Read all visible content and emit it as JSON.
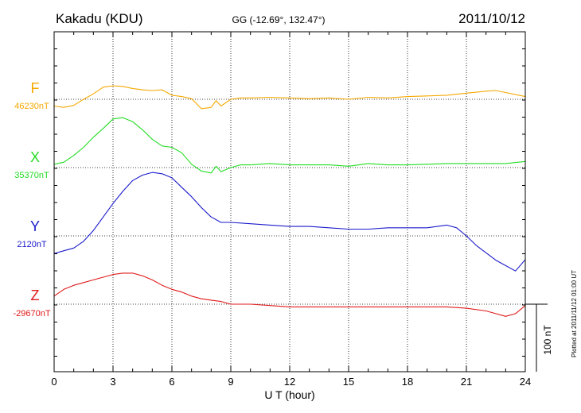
{
  "header": {
    "station": "Kakadu (KDU)",
    "coords": "GG (-12.69°, 132.47°)",
    "date": "2011/10/12"
  },
  "footer": {
    "plotted": "Plotted at 2011/11/12 01:00 UT"
  },
  "chart_data": {
    "type": "line",
    "xlabel": "U T (hour)",
    "xlim": [
      0,
      24
    ],
    "xticks": [
      0,
      3,
      6,
      9,
      12,
      15,
      18,
      21,
      24
    ],
    "scale_bar": {
      "label": "100 nT",
      "value": 100
    },
    "colors": {
      "F": "#f5a800",
      "X": "#22dd22",
      "Y": "#1a1acc",
      "Z": "#e01a1a"
    },
    "series": [
      {
        "name": "F",
        "baseline_label": "46230nT",
        "baseline": 46230,
        "x": [
          0,
          0.5,
          1,
          1.5,
          2,
          2.5,
          3,
          3.5,
          4,
          4.5,
          5,
          5.5,
          6,
          6.5,
          7,
          7.5,
          8,
          8.25,
          8.5,
          9,
          9.5,
          10,
          11,
          12,
          13,
          14,
          15,
          16,
          17,
          18,
          19,
          20,
          21,
          22,
          22.5,
          23,
          24
        ],
        "values": [
          -10,
          -12,
          -9,
          0,
          8,
          18,
          20,
          19,
          16,
          14,
          13,
          14,
          6,
          4,
          1,
          -14,
          -12,
          -2,
          -10,
          0,
          2,
          2,
          3,
          2,
          1,
          2,
          0,
          3,
          2,
          4,
          5,
          6,
          9,
          12,
          13,
          10,
          4
        ]
      },
      {
        "name": "X",
        "baseline_label": "35370nT",
        "baseline": 35370,
        "x": [
          0,
          0.5,
          1,
          1.5,
          2,
          2.5,
          3,
          3.5,
          4,
          4.5,
          5,
          5.5,
          6,
          6.5,
          7,
          7.5,
          8,
          8.25,
          8.5,
          9,
          9.5,
          10,
          11,
          12,
          13,
          14,
          15,
          16,
          17,
          18,
          19,
          20,
          21,
          22,
          23,
          24
        ],
        "values": [
          5,
          8,
          18,
          30,
          45,
          58,
          72,
          74,
          68,
          56,
          42,
          32,
          30,
          22,
          5,
          -5,
          -8,
          2,
          -6,
          0,
          4,
          4,
          6,
          4,
          4,
          4,
          2,
          6,
          4,
          4,
          5,
          6,
          6,
          6,
          6,
          9
        ]
      },
      {
        "name": "Y",
        "baseline_label": "2120nT",
        "baseline": 2120,
        "x": [
          0,
          0.5,
          1,
          1.5,
          2,
          2.5,
          3,
          3.5,
          4,
          4.5,
          5,
          5.5,
          6,
          6.5,
          7,
          7.5,
          8,
          8.5,
          9,
          10,
          11,
          12,
          13,
          14,
          15,
          16,
          17,
          18,
          19,
          20,
          20.5,
          21,
          21.5,
          22,
          22.5,
          23,
          23.5,
          24
        ],
        "values": [
          -26,
          -22,
          -18,
          -8,
          8,
          28,
          48,
          66,
          82,
          90,
          94,
          92,
          86,
          72,
          58,
          42,
          28,
          20,
          20,
          18,
          16,
          14,
          14,
          12,
          10,
          10,
          12,
          12,
          12,
          16,
          12,
          0,
          -14,
          -25,
          -36,
          -44,
          -52,
          -35
        ]
      },
      {
        "name": "Z",
        "baseline_label": "-29670nT",
        "baseline": -29670,
        "x": [
          0,
          0.5,
          1,
          1.5,
          2,
          2.5,
          3,
          3.5,
          4,
          4.5,
          5,
          5.5,
          6,
          6.5,
          7,
          7.5,
          8,
          8.5,
          9,
          10,
          11,
          12,
          13,
          14,
          15,
          16,
          17,
          18,
          19,
          20,
          21,
          22,
          22.5,
          23,
          23.5,
          24
        ],
        "values": [
          12,
          22,
          28,
          32,
          36,
          40,
          44,
          46,
          46,
          42,
          36,
          28,
          22,
          18,
          12,
          8,
          6,
          4,
          0,
          0,
          -2,
          -4,
          -4,
          -4,
          -4,
          -4,
          -4,
          -4,
          -4,
          -4,
          -6,
          -10,
          -14,
          -18,
          -14,
          -2
        ]
      }
    ]
  }
}
